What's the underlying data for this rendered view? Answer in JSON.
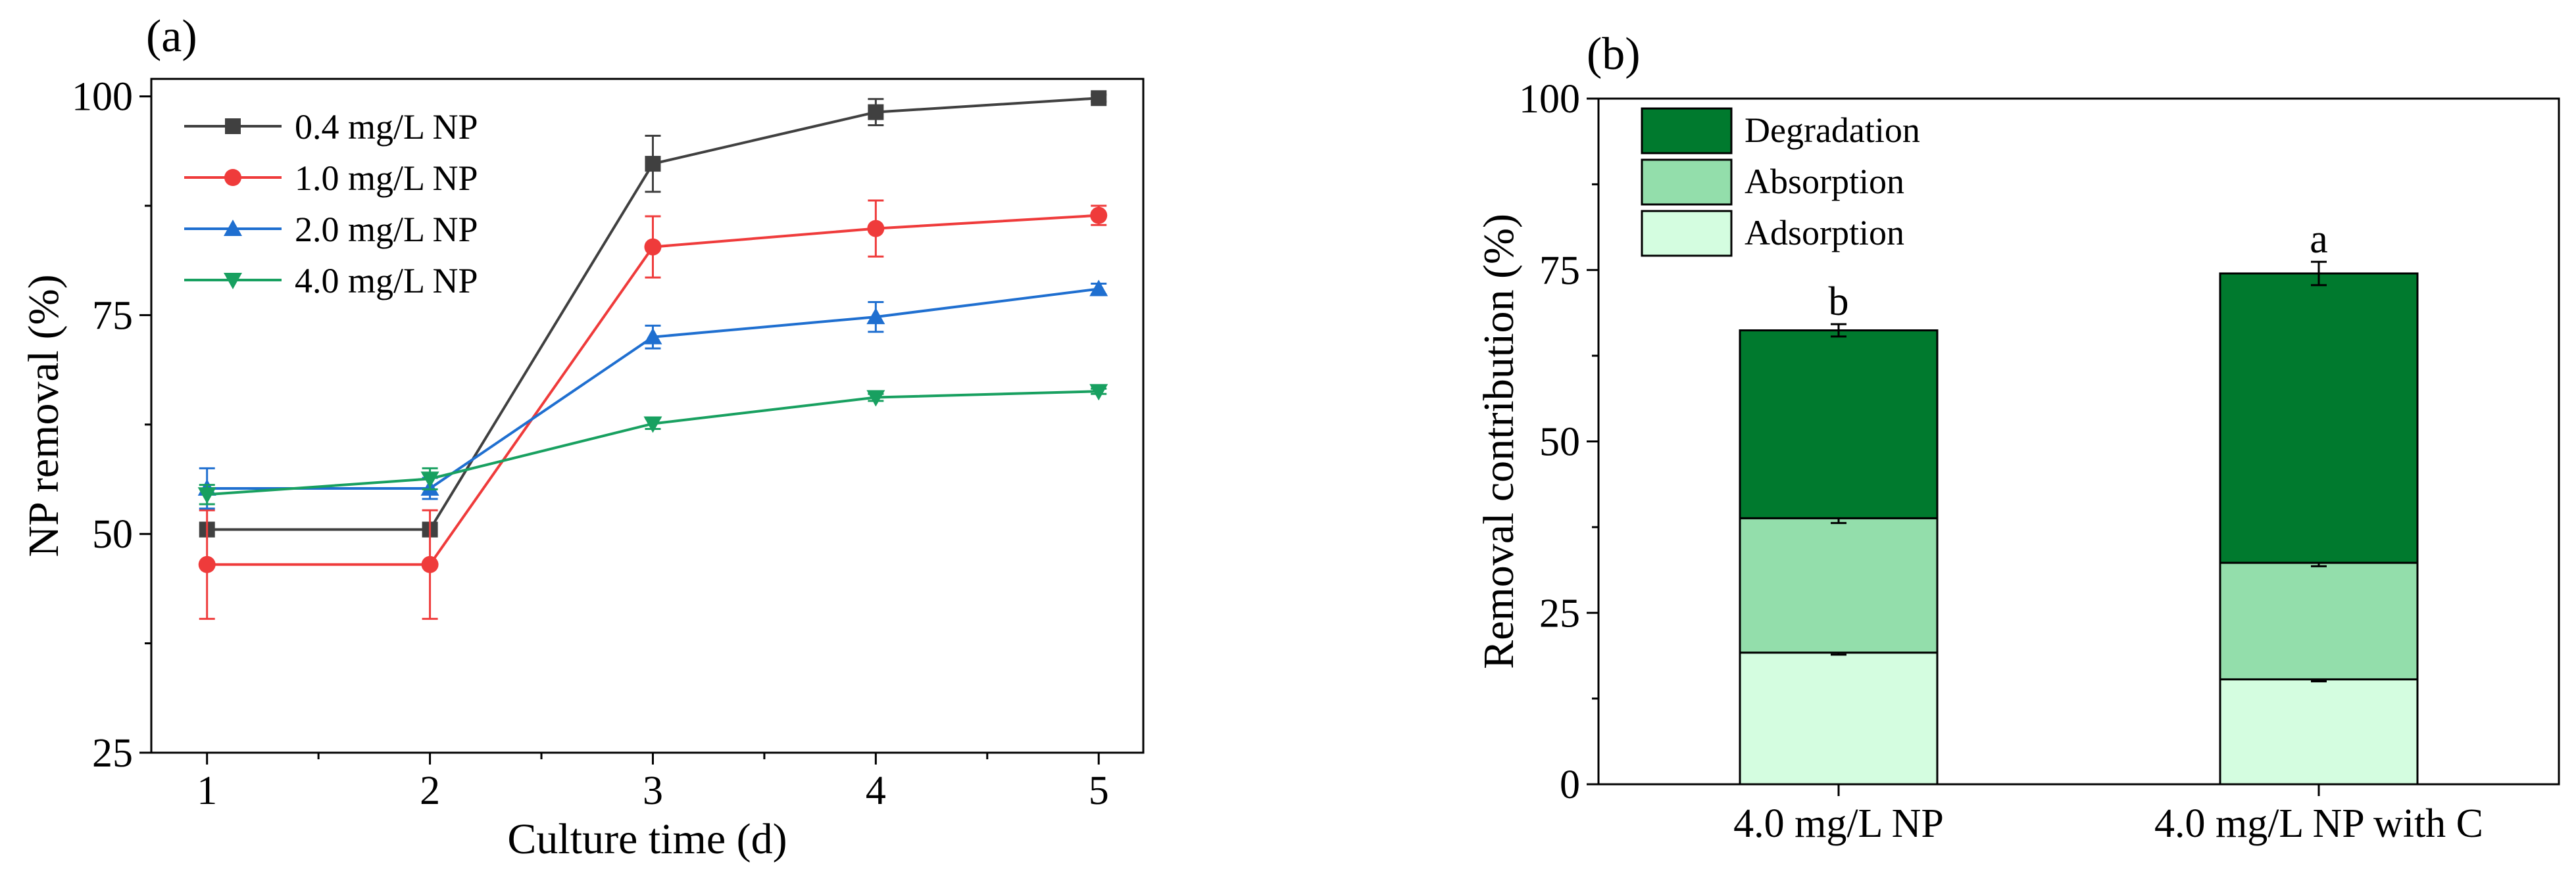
{
  "chart_data": [
    {
      "panel": "(a)",
      "type": "line",
      "title": "",
      "xlabel": "Culture time (d)",
      "ylabel": "NP removal (%)",
      "xlim": [
        0.75,
        5.2
      ],
      "ylim": [
        25,
        102
      ],
      "xticks": [
        1,
        2,
        3,
        4,
        5
      ],
      "yticks": [
        25,
        50,
        75,
        100
      ],
      "grid": false,
      "legend_position": "top-left",
      "x": [
        1,
        2,
        3,
        4,
        5
      ],
      "series": [
        {
          "name": "0.4 mg/L NP",
          "color": "#404040",
          "marker": "square",
          "values": [
            50.5,
            50.5,
            92.3,
            98.2,
            99.8
          ],
          "errors": [
            0,
            0,
            3.2,
            1.5,
            0.4
          ]
        },
        {
          "name": "1.0 mg/L NP",
          "color": "#ef3b3b",
          "marker": "circle",
          "values": [
            46.5,
            46.5,
            82.8,
            84.9,
            86.4
          ],
          "errors": [
            6.2,
            6.2,
            3.5,
            3.2,
            1.1
          ]
        },
        {
          "name": "2.0 mg/L NP",
          "color": "#1f6fd0",
          "marker": "triangle-up",
          "values": [
            55.2,
            55.2,
            72.5,
            74.8,
            78.0
          ],
          "errors": [
            2.3,
            1.2,
            1.3,
            1.7,
            0.6
          ]
        },
        {
          "name": "4.0 mg/L NP",
          "color": "#18a060",
          "marker": "triangle-down",
          "values": [
            54.5,
            56.3,
            62.6,
            65.6,
            66.3
          ],
          "errors": [
            1.1,
            1.2,
            0.6,
            0.4,
            0.3
          ]
        }
      ]
    },
    {
      "panel": "(b)",
      "type": "bar",
      "stacked": true,
      "title": "",
      "xlabel": "",
      "ylabel": "Removal contribution (%)",
      "ylim": [
        0,
        100
      ],
      "yticks": [
        0,
        25,
        50,
        75,
        100
      ],
      "grid": false,
      "legend_position": "top-left",
      "categories": [
        "4.0 mg/L NP",
        "4.0 mg/L NP with C"
      ],
      "series": [
        {
          "name": "Adsorption",
          "color": "#d4fde0",
          "values": [
            19.2,
            15.3
          ],
          "errors": [
            0.3,
            0.3
          ]
        },
        {
          "name": "Absorption",
          "color": "#93deab",
          "values": [
            19.6,
            17.0
          ],
          "errors": [
            0.7,
            0.5
          ]
        },
        {
          "name": "Degradation",
          "color": "#007a2e",
          "values": [
            27.4,
            42.2
          ],
          "errors": [
            0.9,
            1.7
          ]
        }
      ],
      "legend_order": [
        "Degradation",
        "Absorption",
        "Adsorption"
      ],
      "annotations": [
        "b",
        "a"
      ]
    }
  ]
}
